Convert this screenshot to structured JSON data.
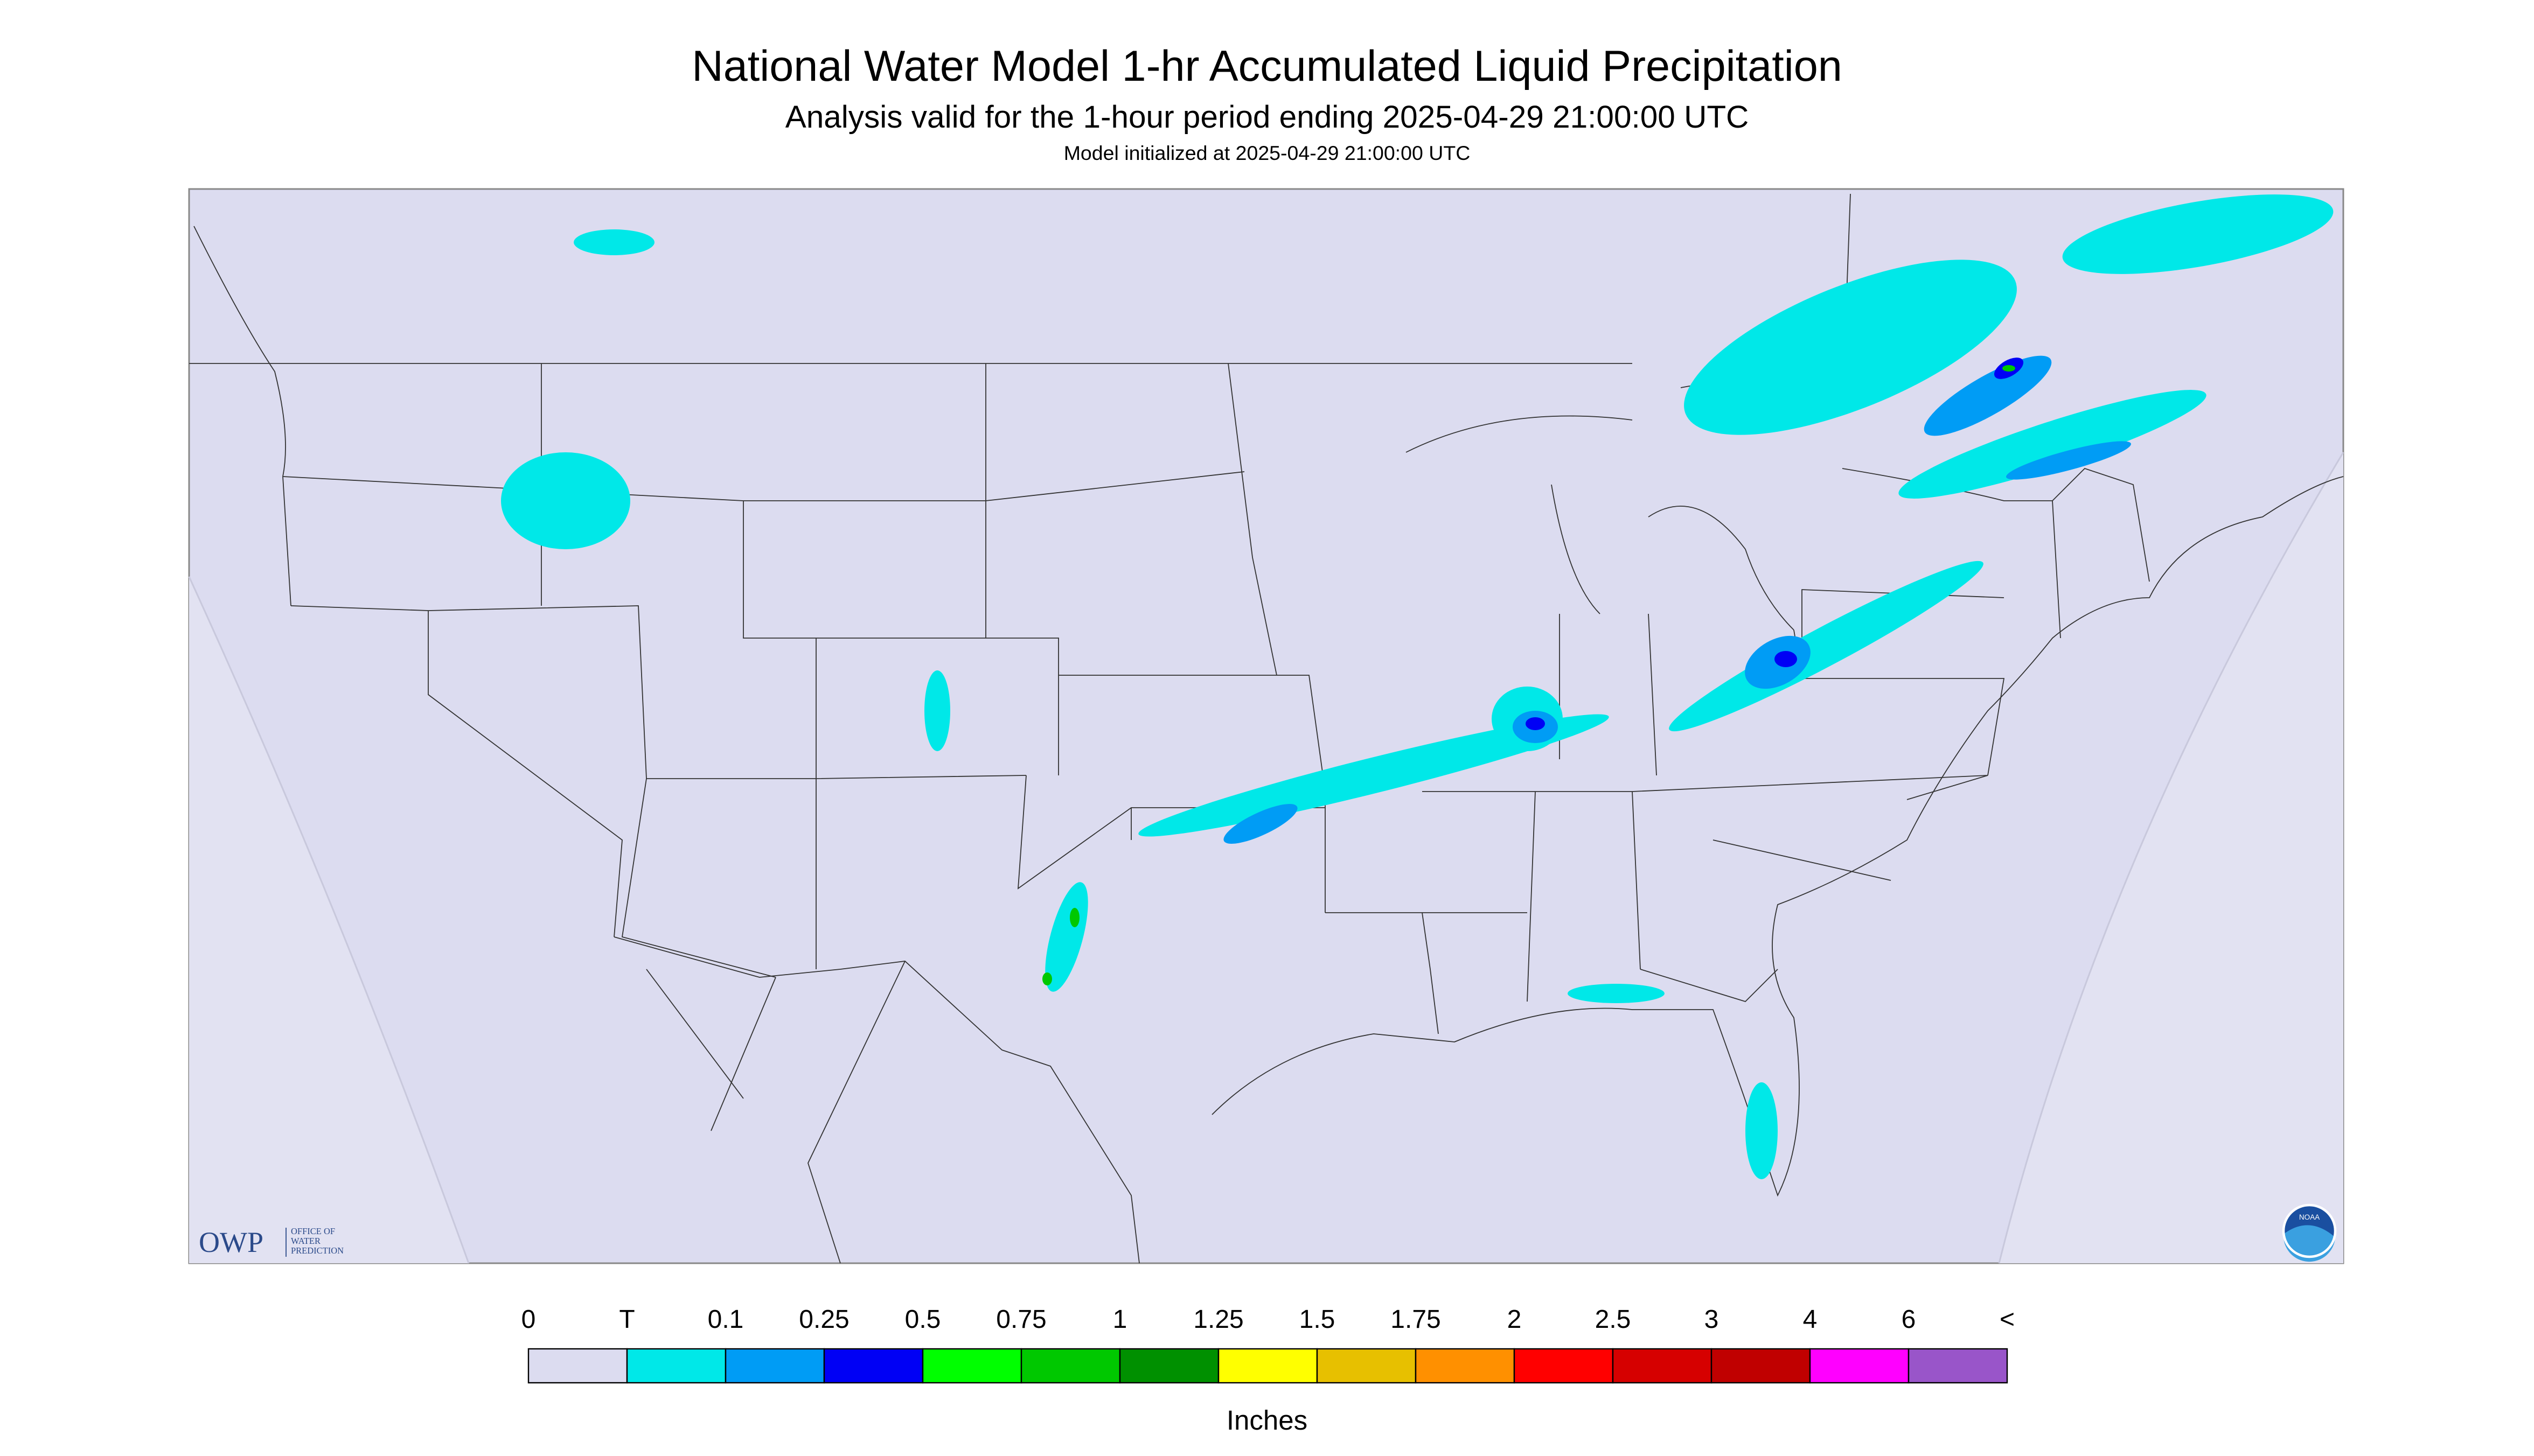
{
  "header": {
    "title": "National Water Model 1-hr Accumulated Liquid Precipitation",
    "subtitle": "Analysis valid for the 1-hour period ending 2025-04-29 21:00:00 UTC",
    "note": "Model initialized at 2025-04-29 21:00:00 UTC"
  },
  "logo": {
    "abbr": "OWP",
    "lines": [
      "OFFICE OF",
      "WATER",
      "PREDICTION"
    ],
    "noaa": "NOAA"
  },
  "legend": {
    "labels": [
      0,
      "T",
      0.1,
      0.25,
      0.5,
      0.75,
      1,
      1.25,
      1.5,
      1.75,
      2,
      2.5,
      3,
      4,
      6,
      "<"
    ],
    "colors": [
      "#dcdcf0",
      "#00e8e8",
      "#009cf5",
      "#0000f5",
      "#00ff00",
      "#00c800",
      "#009000",
      "#ffff00",
      "#e7c000",
      "#ff9000",
      "#ff0000",
      "#d60000",
      "#c00000",
      "#ff00ff",
      "#9955c9"
    ],
    "units": "Inches"
  }
}
